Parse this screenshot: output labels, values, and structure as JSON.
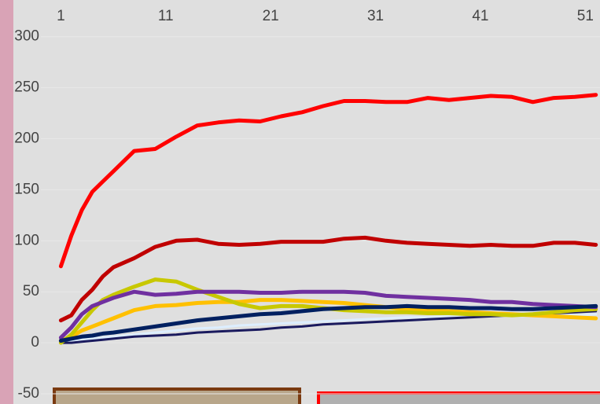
{
  "chart_data": {
    "type": "line",
    "x": [
      1,
      2,
      3,
      4,
      5,
      6,
      8,
      10,
      12,
      14,
      16,
      18,
      20,
      22,
      24,
      26,
      28,
      30,
      32,
      34,
      36,
      38,
      40,
      42,
      44,
      46,
      48,
      50,
      52
    ],
    "xlim": [
      -4.8,
      52.4
    ],
    "xticks": [
      1,
      11,
      21,
      31,
      41,
      51
    ],
    "ylim": [
      -60,
      336
    ],
    "yticks": [
      300,
      250,
      200,
      150,
      100,
      50,
      0,
      -50
    ],
    "grid": true,
    "series": [
      {
        "color": "#ddeeff",
        "values": [
          1,
          2,
          3,
          4,
          5,
          6,
          8,
          10,
          12,
          14,
          15,
          17,
          18,
          19,
          20,
          21,
          22,
          23,
          24,
          25,
          25,
          26,
          26,
          27,
          27,
          27,
          27,
          27,
          28
        ]
      },
      {
        "color": "#1a1a5e",
        "values": [
          0,
          0,
          1,
          2,
          3,
          4,
          6,
          7,
          8,
          10,
          11,
          12,
          13,
          15,
          16,
          18,
          19,
          20,
          21,
          22,
          23,
          24,
          25,
          26,
          27,
          28,
          29,
          30,
          31
        ]
      },
      {
        "color": "#ffc000",
        "values": [
          2,
          6,
          12,
          16,
          20,
          24,
          32,
          36,
          37,
          39,
          40,
          40,
          42,
          42,
          41,
          40,
          39,
          37,
          35,
          33,
          32,
          31,
          30,
          29,
          28,
          27,
          26,
          25,
          24
        ]
      },
      {
        "color": "#c8c800",
        "values": [
          0,
          8,
          20,
          32,
          42,
          47,
          55,
          62,
          60,
          52,
          45,
          38,
          34,
          36,
          36,
          34,
          32,
          31,
          30,
          30,
          29,
          29,
          28,
          28,
          27,
          28,
          30,
          32,
          33
        ]
      },
      {
        "color": "#7030a0",
        "values": [
          5,
          15,
          28,
          36,
          40,
          44,
          50,
          47,
          48,
          50,
          50,
          50,
          49,
          49,
          50,
          50,
          50,
          49,
          46,
          45,
          44,
          43,
          42,
          40,
          40,
          38,
          37,
          36,
          35
        ]
      },
      {
        "color": "#002060",
        "values": [
          2,
          4,
          6,
          7,
          9,
          10,
          13,
          16,
          19,
          22,
          24,
          26,
          28,
          29,
          31,
          33,
          34,
          35,
          35,
          36,
          35,
          35,
          34,
          34,
          33,
          33,
          34,
          35,
          36
        ]
      },
      {
        "color": "#c00000",
        "values": [
          22,
          27,
          42,
          52,
          65,
          74,
          83,
          94,
          100,
          101,
          97,
          96,
          97,
          99,
          99,
          99,
          102,
          103,
          100,
          98,
          97,
          96,
          95,
          96,
          95,
          95,
          98,
          98,
          96
        ]
      },
      {
        "color": "#ff0000",
        "values": [
          75,
          105,
          130,
          148,
          158,
          168,
          188,
          190,
          202,
          213,
          216,
          218,
          217,
          222,
          226,
          232,
          237,
          237,
          236,
          236,
          240,
          238,
          240,
          242,
          241,
          236,
          240,
          241,
          243
        ]
      }
    ]
  }
}
